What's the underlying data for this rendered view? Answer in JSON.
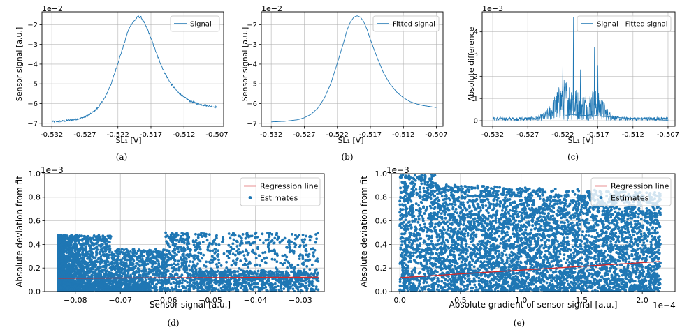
{
  "figure": {
    "panels": [
      "a",
      "b",
      "c",
      "d",
      "e"
    ]
  },
  "chart_data": [
    {
      "id": "a",
      "type": "line",
      "caption": "(a)",
      "xlabel": "SL₁ [V]",
      "ylabel": "Sensor signal [a.u.]",
      "offset_label": "1e−2",
      "xlim": [
        -0.5335,
        -0.506
      ],
      "ylim": [
        -7.15,
        -1.35
      ],
      "xticks": [
        -0.532,
        -0.527,
        -0.522,
        -0.517,
        -0.512,
        -0.507
      ],
      "xtick_labels": [
        "-0.532",
        "-0.527",
        "-0.522",
        "-0.517",
        "-0.512",
        "-0.507"
      ],
      "yticks": [
        -7,
        -6,
        -5,
        -4,
        -3,
        -2
      ],
      "ytick_labels": [
        "−7",
        "−6",
        "−5",
        "−4",
        "−3",
        "−2"
      ],
      "grid": true,
      "legend_position": "top-right",
      "series": [
        {
          "name": "Signal",
          "color": "#1f77b4",
          "x": [
            -0.532,
            -0.53,
            -0.528,
            -0.527,
            -0.526,
            -0.525,
            -0.524,
            -0.523,
            -0.522,
            -0.521,
            -0.5205,
            -0.52,
            -0.5195,
            -0.519,
            -0.5185,
            -0.518,
            -0.5175,
            -0.517,
            -0.516,
            -0.515,
            -0.514,
            -0.513,
            -0.512,
            -0.511,
            -0.51,
            -0.509,
            -0.508,
            -0.507
          ],
          "y": [
            -6.92,
            -6.88,
            -6.78,
            -6.68,
            -6.5,
            -6.2,
            -5.72,
            -4.98,
            -3.95,
            -2.9,
            -2.35,
            -1.98,
            -1.8,
            -1.6,
            -1.62,
            -1.92,
            -2.25,
            -2.7,
            -3.6,
            -4.4,
            -4.98,
            -5.4,
            -5.68,
            -5.88,
            -6.0,
            -6.08,
            -6.14,
            -6.18
          ]
        }
      ]
    },
    {
      "id": "b",
      "type": "line",
      "caption": "(b)",
      "xlabel": "SL₁ [V]",
      "ylabel": "Sensor signal [a.u.]",
      "offset_label": "1e−2",
      "xlim": [
        -0.5335,
        -0.506
      ],
      "ylim": [
        -7.15,
        -1.35
      ],
      "xticks": [
        -0.532,
        -0.527,
        -0.522,
        -0.517,
        -0.512,
        -0.507
      ],
      "xtick_labels": [
        "-0.532",
        "-0.527",
        "-0.522",
        "-0.517",
        "-0.512",
        "-0.507"
      ],
      "yticks": [
        -7,
        -6,
        -5,
        -4,
        -3,
        -2
      ],
      "ytick_labels": [
        "−7",
        "−6",
        "−5",
        "−4",
        "−3",
        "−2"
      ],
      "grid": true,
      "legend_position": "top-right",
      "series": [
        {
          "name": "Fitted signal",
          "color": "#1f77b4",
          "x": [
            -0.532,
            -0.53,
            -0.528,
            -0.527,
            -0.526,
            -0.525,
            -0.524,
            -0.523,
            -0.522,
            -0.521,
            -0.5205,
            -0.52,
            -0.5195,
            -0.519,
            -0.5185,
            -0.518,
            -0.5175,
            -0.517,
            -0.516,
            -0.515,
            -0.514,
            -0.513,
            -0.512,
            -0.511,
            -0.51,
            -0.509,
            -0.508,
            -0.507
          ],
          "y": [
            -6.93,
            -6.9,
            -6.82,
            -6.72,
            -6.55,
            -6.25,
            -5.75,
            -5.0,
            -3.95,
            -2.85,
            -2.25,
            -1.85,
            -1.62,
            -1.55,
            -1.62,
            -1.85,
            -2.25,
            -2.75,
            -3.65,
            -4.45,
            -5.02,
            -5.42,
            -5.7,
            -5.9,
            -6.02,
            -6.1,
            -6.15,
            -6.2
          ]
        }
      ]
    },
    {
      "id": "c",
      "type": "line",
      "caption": "(c)",
      "xlabel": "SL₁ [V]",
      "ylabel": "Absolute difference",
      "offset_label": "1e−3",
      "xlim": [
        -0.5335,
        -0.506
      ],
      "ylim": [
        -0.25,
        4.9
      ],
      "xticks": [
        -0.532,
        -0.527,
        -0.522,
        -0.517,
        -0.512,
        -0.507
      ],
      "xtick_labels": [
        "-0.532",
        "-0.527",
        "-0.522",
        "-0.517",
        "-0.512",
        "-0.507"
      ],
      "yticks": [
        0,
        1,
        2,
        3,
        4
      ],
      "ytick_labels": [
        "0",
        "1",
        "2",
        "3",
        "4"
      ],
      "grid": true,
      "legend_position": "top-right",
      "series": [
        {
          "name": "Signal - Fitted signal",
          "color": "#1f77b4",
          "description_values": "noisy absolute residual; baseline ≈0.1–0.3, peaks ≈4.6 near -0.5205, ≈3.3 near -0.5175",
          "peaks": [
            {
              "x": -0.522,
              "y": 2.6
            },
            {
              "x": -0.5205,
              "y": 4.65
            },
            {
              "x": -0.5195,
              "y": 2.3
            },
            {
              "x": -0.5175,
              "y": 3.3
            },
            {
              "x": -0.517,
              "y": 2.5
            }
          ]
        }
      ]
    },
    {
      "id": "d",
      "type": "scatter",
      "caption": "(d)",
      "xlabel": "Sensor signal [a.u.]",
      "ylabel": "Absolute deviation from fit",
      "offset_label": "1e−3",
      "xlim": [
        -0.0868,
        -0.0247
      ],
      "ylim": [
        0,
        1.0
      ],
      "xticks": [
        -0.08,
        -0.07,
        -0.06,
        -0.05,
        -0.04,
        -0.03
      ],
      "xtick_labels": [
        "−0.08",
        "−0.07",
        "−0.06",
        "−0.05",
        "−0.04",
        "−0.03"
      ],
      "yticks": [
        0.0,
        0.2,
        0.4,
        0.6,
        0.8,
        1.0
      ],
      "ytick_labels": [
        "0.0",
        "0.2",
        "0.4",
        "0.6",
        "0.8",
        "1.0"
      ],
      "grid": true,
      "legend_position": "top-right",
      "series": [
        {
          "name": "Regression line",
          "color": "#d62728",
          "type": "line",
          "x": [
            -0.0838,
            -0.026
          ],
          "y": [
            0.113,
            0.123
          ]
        },
        {
          "name": "Estimates",
          "color": "#1f77b4",
          "type": "scatter",
          "x_range": [
            -0.0838,
            -0.026
          ],
          "y_range": [
            0,
            0.5
          ]
        }
      ]
    },
    {
      "id": "e",
      "type": "scatter",
      "caption": "(e)",
      "xlabel": "Absolute gradient of sensor signal [a.u.]",
      "ylabel": "Absolute deviation from fit",
      "offset_label": "1e−3",
      "x_offset_label": "1e−4",
      "xlim": [
        -0.07,
        2.27
      ],
      "ylim": [
        0,
        1.0
      ],
      "xticks": [
        0.0,
        0.5,
        1.0,
        1.5,
        2.0
      ],
      "xtick_labels": [
        "0.0",
        "0.5",
        "1.0",
        "1.5",
        "2.0"
      ],
      "yticks": [
        0.0,
        0.2,
        0.4,
        0.6,
        0.8,
        1.0
      ],
      "ytick_labels": [
        "0.0",
        "0.2",
        "0.4",
        "0.6",
        "0.8",
        "1.0"
      ],
      "grid": true,
      "legend_position": "top-right",
      "series": [
        {
          "name": "Regression line",
          "color": "#d62728",
          "type": "line",
          "x": [
            0.0,
            2.15
          ],
          "y": [
            0.118,
            0.255
          ]
        },
        {
          "name": "Estimates",
          "color": "#1f77b4",
          "type": "scatter",
          "x_range": [
            0.0,
            2.15
          ],
          "y_range": [
            0,
            1.0
          ]
        }
      ]
    }
  ]
}
